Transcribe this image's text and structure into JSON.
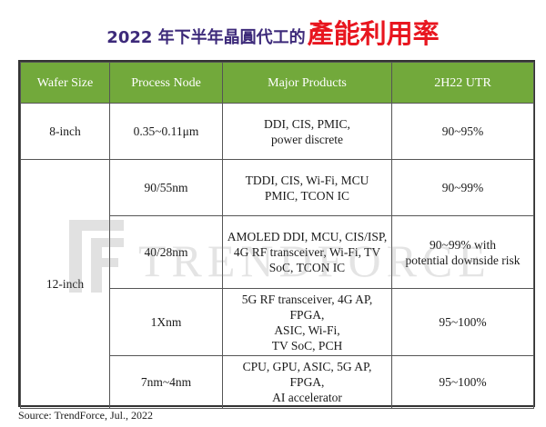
{
  "title": {
    "main": "2022 年下半年晶圓代工的",
    "accent": "產能利用率"
  },
  "watermark": "TRENDFORCE",
  "table": {
    "headers": [
      "Wafer Size",
      "Process Node",
      "Major Products",
      "2H22 UTR"
    ],
    "rows": [
      {
        "wafer_size": "8-inch",
        "node": "0.35~0.11μm",
        "products_l1": "DDI, CIS, PMIC,",
        "products_l2": "power discrete",
        "products_l3": "",
        "utr_l1": "90~95%",
        "utr_l2": ""
      },
      {
        "wafer_size": "12-inch",
        "node": "90/55nm",
        "products_l1": "TDDI, CIS, Wi-Fi, MCU",
        "products_l2": "PMIC, TCON IC",
        "products_l3": "",
        "utr_l1": "90~99%",
        "utr_l2": ""
      },
      {
        "node": "40/28nm",
        "products_l1": "AMOLED DDI, MCU, CIS/ISP,",
        "products_l2": "4G RF transceiver, Wi-Fi, TV",
        "products_l3": "SoC, TCON IC",
        "utr_l1": "90~99% with",
        "utr_l2": "potential downside risk"
      },
      {
        "node": "1Xnm",
        "products_l1": "5G RF transceiver, 4G AP, FPGA,",
        "products_l2": "ASIC, Wi-Fi,",
        "products_l3": "TV SoC, PCH",
        "utr_l1": "95~100%",
        "utr_l2": ""
      },
      {
        "node": "7nm~4nm",
        "products_l1": "CPU, GPU, ASIC, 5G AP, FPGA,",
        "products_l2": "AI accelerator",
        "products_l3": "",
        "utr_l1": "95~100%",
        "utr_l2": ""
      }
    ]
  },
  "source": "Source: TrendForce, Jul., 2022",
  "colors": {
    "header_bg": "#72a93b",
    "title_main": "#3d2a7a",
    "title_accent": "#e8161f"
  }
}
